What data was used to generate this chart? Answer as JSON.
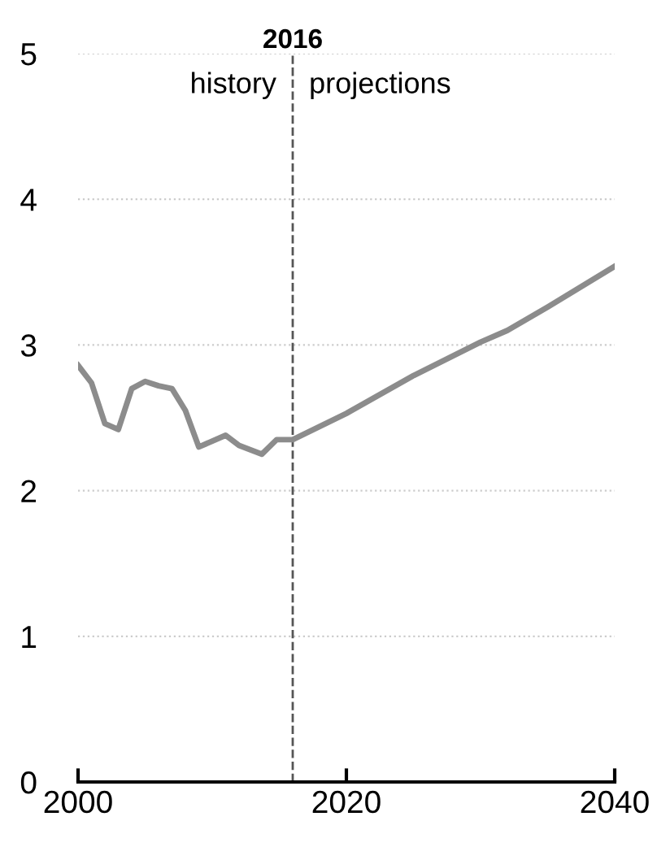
{
  "chart_data": {
    "type": "line",
    "x": [
      2000,
      2001,
      2002,
      2003,
      2004,
      2005,
      2006,
      2007,
      2008,
      2009,
      2011,
      2012,
      2013.7,
      2014.8,
      2016,
      2020,
      2025,
      2030,
      2032,
      2035,
      2040
    ],
    "series": [
      {
        "color": "#8c8c8c",
        "values": [
          2.86,
          2.74,
          2.46,
          2.42,
          2.7,
          2.75,
          2.72,
          2.7,
          2.55,
          2.3,
          2.38,
          2.31,
          2.25,
          2.35,
          2.35,
          2.53,
          2.79,
          3.02,
          3.1,
          3.26,
          3.54
        ]
      }
    ],
    "xlim": [
      2000,
      2040
    ],
    "xticks": [
      2000,
      2020,
      2040
    ],
    "ylim": [
      0,
      5
    ],
    "yticks": [
      0,
      1,
      2,
      3,
      4,
      5
    ],
    "grid": "y",
    "marker": "none",
    "line_style": "solid",
    "ref_lines": [
      {
        "axis": "x",
        "value": 2016,
        "label": "2016",
        "color": "#555555",
        "line_style": "dashed"
      }
    ],
    "annotations": [
      "history",
      "projections"
    ]
  }
}
